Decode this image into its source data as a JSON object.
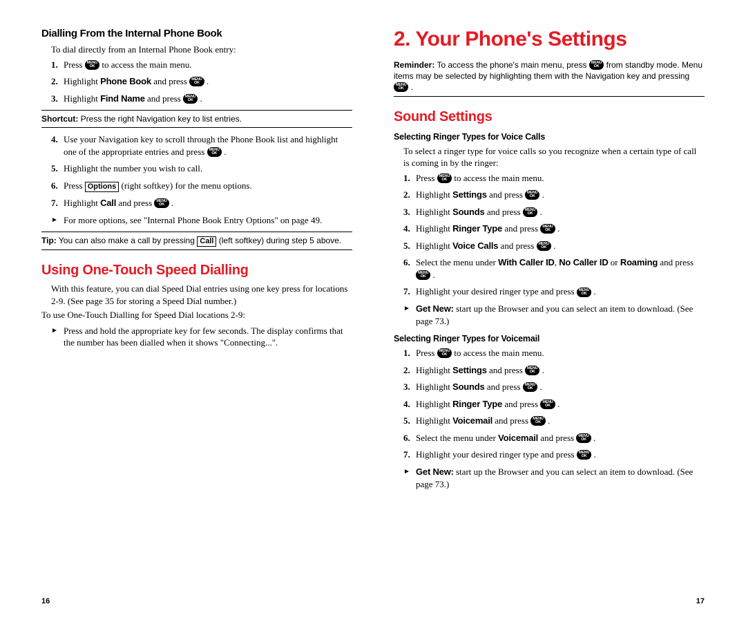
{
  "left": {
    "h3a": "Dialling From the Internal Phone Book",
    "intro1": "To dial directly from an Internal Phone Book entry:",
    "steps_a": [
      {
        "n": "1.",
        "pre": "Press ",
        "post": " to access the main menu."
      },
      {
        "n": "2.",
        "pre": "Highlight ",
        "bold": "Phone Book",
        "mid": " and press ",
        "post": " ."
      },
      {
        "n": "3.",
        "pre": "Highlight ",
        "bold": "Find Name",
        "mid": " and press ",
        "post": " ."
      }
    ],
    "shortcut_label": "Shortcut:",
    "shortcut_text": " Press the right Navigation key to list entries.",
    "steps_b": [
      {
        "n": "4.",
        "text_pre": "Use your Navigation key to scroll through the Phone Book list and highlight one of the appropriate entries and press ",
        "text_post": " ."
      },
      {
        "n": "5.",
        "text": "Highlight the number you wish to call."
      },
      {
        "n": "6.",
        "pre": "Press ",
        "box": "Options",
        "post": " (right softkey) for the menu options."
      },
      {
        "n": "7.",
        "pre": "Highlight ",
        "bold": "Call",
        "mid": " and press ",
        "post": " ."
      }
    ],
    "bullet1": "For more options, see \"Internal Phone Book Entry Options\" on page 49.",
    "tip_label": "Tip:",
    "tip_pre": " You can also make a call by pressing ",
    "tip_box": "Call",
    "tip_post": " (left softkey) during step 5 above.",
    "h2b": "Using One-Touch Speed Dialling",
    "para_b1": "With this feature, you can dial Speed Dial entries using one key press for locations 2-9. (See page 35 for storing a Speed Dial number.)",
    "para_b2": "To use One-Touch Dialling for Speed Dial locations 2-9:",
    "bullet_b": "Press and hold the appropriate key for few seconds. The display confirms that the number has been dialled when it shows \"Connecting...\".",
    "page_num": "16"
  },
  "right": {
    "h1": "2. Your Phone's Settings",
    "reminder_label": "Reminder:",
    "reminder_pre": " To access the phone's main menu, press ",
    "reminder_mid": " from standby mode. Menu items may be selected by highlighting them with the Navigation key and pressing ",
    "reminder_post": " .",
    "h2": "Sound Settings",
    "h4a": "Selecting Ringer Types for Voice Calls",
    "intro_a": "To select a ringer type for voice calls so you recognize when a certain type of call is coming in by the ringer:",
    "steps_a": [
      {
        "n": "1.",
        "pre": "Press ",
        "post": " to access the main menu."
      },
      {
        "n": "2.",
        "pre": "Highlight ",
        "bold": "Settings",
        "mid": " and press ",
        "post": " ."
      },
      {
        "n": "3.",
        "pre": "Highlight ",
        "bold": "Sounds",
        "mid": " and press ",
        "post": " ."
      },
      {
        "n": "4.",
        "pre": "Highlight ",
        "bold": "Ringer Type",
        "mid": " and press ",
        "post": " ."
      },
      {
        "n": "5.",
        "pre": "Highlight ",
        "bold": "Voice Calls",
        "mid": " and press ",
        "post": " ."
      },
      {
        "n": "6.",
        "html": "Select the menu under <b class='sans-b'>With Caller ID</b>, <b class='sans-b'>No Caller ID</b> or <b class='sans-b'>Roaming</b> and press ",
        "post": " ."
      },
      {
        "n": "7.",
        "pre": "Highlight your desired ringer type and press ",
        "post": " ."
      }
    ],
    "bullet_a_bold": "Get New:",
    "bullet_a_text": " start up the Browser and you can select an item to download. (See page 73.)",
    "h4b": "Selecting Ringer Types for Voicemail",
    "steps_b": [
      {
        "n": "1.",
        "pre": "Press ",
        "post": " to access the main menu."
      },
      {
        "n": "2.",
        "pre": "Highlight ",
        "bold": "Settings",
        "mid": " and press ",
        "post": " ."
      },
      {
        "n": "3.",
        "pre": "Highlight ",
        "bold": "Sounds",
        "mid": " and press ",
        "post": " ."
      },
      {
        "n": "4.",
        "pre": "Highlight ",
        "bold": "Ringer Type",
        "mid": " and press ",
        "post": " ."
      },
      {
        "n": "5.",
        "pre": "Highlight ",
        "bold": "Voicemail",
        "mid": " and press ",
        "post": " ."
      },
      {
        "n": "6.",
        "pre": "Select the menu under ",
        "bold": "Voicemail",
        "mid": " and press ",
        "post": " ."
      },
      {
        "n": "7.",
        "pre": "Highlight your desired ringer type and press ",
        "post": " ."
      }
    ],
    "bullet_b_bold": "Get New:",
    "bullet_b_text": " start up the Browser and you can select an item to download. (See page 73.)",
    "page_num": "17"
  }
}
